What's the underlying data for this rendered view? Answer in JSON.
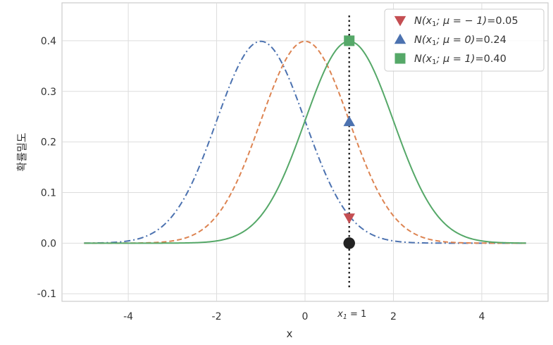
{
  "chart_data": {
    "type": "line",
    "title": "",
    "xlabel": "x",
    "ylabel": "확률밀도",
    "xlim": [
      -5.5,
      5.5
    ],
    "ylim": [
      -0.115,
      0.475
    ],
    "grid": true,
    "legend_position": "top-right",
    "x_ticks": [
      {
        "value": -4,
        "label": "-4"
      },
      {
        "value": -2,
        "label": "-2"
      },
      {
        "value": 0,
        "label": "0"
      },
      {
        "value": 2,
        "label": "2"
      },
      {
        "value": 4,
        "label": "4"
      }
    ],
    "y_ticks": [
      {
        "value": -0.1,
        "label": "-0.1"
      },
      {
        "value": 0.0,
        "label": "0.0"
      },
      {
        "value": 0.1,
        "label": "0.1"
      },
      {
        "value": 0.2,
        "label": "0.2"
      },
      {
        "value": 0.3,
        "label": "0.3"
      },
      {
        "value": 0.4,
        "label": "0.4"
      }
    ],
    "curve_x_range": [
      -5,
      5
    ],
    "series": [
      {
        "mu": -1,
        "sigma": 1,
        "color": "#4c72b0",
        "style": "dashdot"
      },
      {
        "mu": 0,
        "sigma": 1,
        "color": "#dd8452",
        "style": "dashed"
      },
      {
        "mu": 1,
        "sigma": 1,
        "color": "#55a868",
        "style": "solid"
      }
    ],
    "vertical_line": {
      "x": 1,
      "y_range": [
        -0.09,
        0.45
      ],
      "color": "#222222",
      "style": "dotted"
    },
    "markers": [
      {
        "x": 1,
        "y": 0.0,
        "shape": "circle",
        "color": "#222222"
      },
      {
        "x": 1,
        "y": 0.05,
        "shape": "triangle-down",
        "color": "#c44e52"
      },
      {
        "x": 1,
        "y": 0.24,
        "shape": "triangle-up",
        "color": "#4c72b0"
      },
      {
        "x": 1,
        "y": 0.4,
        "shape": "square",
        "color": "#55a868"
      }
    ],
    "annotation": {
      "x": 1,
      "text_main": "x",
      "text_sub": "1",
      "text_rest": " = 1"
    },
    "legend": [
      {
        "shape": "triangle-down",
        "color": "#c44e52",
        "prefix": "N(x",
        "sub": "1",
        "mid": "; μ = − 1)",
        "value": "=0.05"
      },
      {
        "shape": "triangle-up",
        "color": "#4c72b0",
        "prefix": "N(x",
        "sub": "1",
        "mid": "; μ = 0)",
        "value": "=0.24"
      },
      {
        "shape": "square",
        "color": "#55a868",
        "prefix": "N(x",
        "sub": "1",
        "mid": "; μ = 1)",
        "value": "=0.40"
      }
    ]
  }
}
